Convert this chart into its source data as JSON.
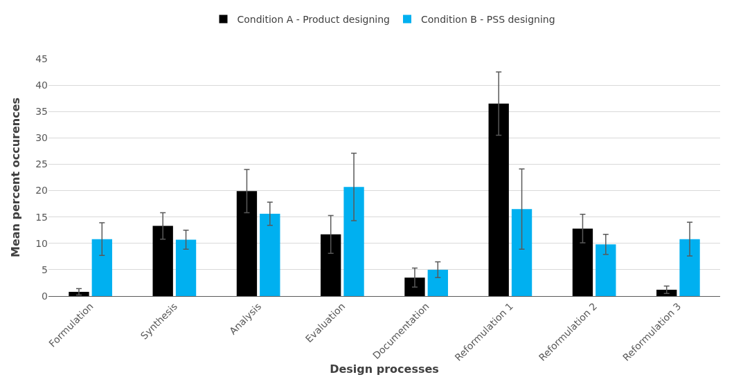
{
  "chart_data": {
    "type": "bar",
    "xlabel": "Design processes",
    "ylabel": "Mean percent occurences",
    "categories": [
      "Formulation",
      "Synthesis",
      "Analysis",
      "Evaluation",
      "Documentation",
      "Reformulation 1",
      "Reformulation 2",
      "Reformulation 3"
    ],
    "series": [
      {
        "name": "Condition A - Product designing",
        "color": "#000000",
        "values": [
          0.8,
          13.3,
          19.9,
          11.7,
          3.5,
          36.5,
          12.8,
          1.2
        ],
        "errors": [
          0.6,
          2.5,
          4.1,
          3.6,
          1.8,
          6,
          2.7,
          0.7
        ]
      },
      {
        "name": "Condition B - PSS designing",
        "color": "#00b0f0",
        "values": [
          10.8,
          10.7,
          15.6,
          20.7,
          5.0,
          16.5,
          9.8,
          10.8
        ],
        "errors": [
          3.1,
          1.8,
          2.2,
          6.4,
          1.5,
          7.6,
          1.9,
          3.2
        ]
      }
    ],
    "ylim": [
      0,
      45
    ],
    "yticks": [
      0,
      5,
      10,
      15,
      20,
      25,
      30,
      35,
      40,
      45
    ],
    "grid": "y",
    "legend": "top"
  }
}
